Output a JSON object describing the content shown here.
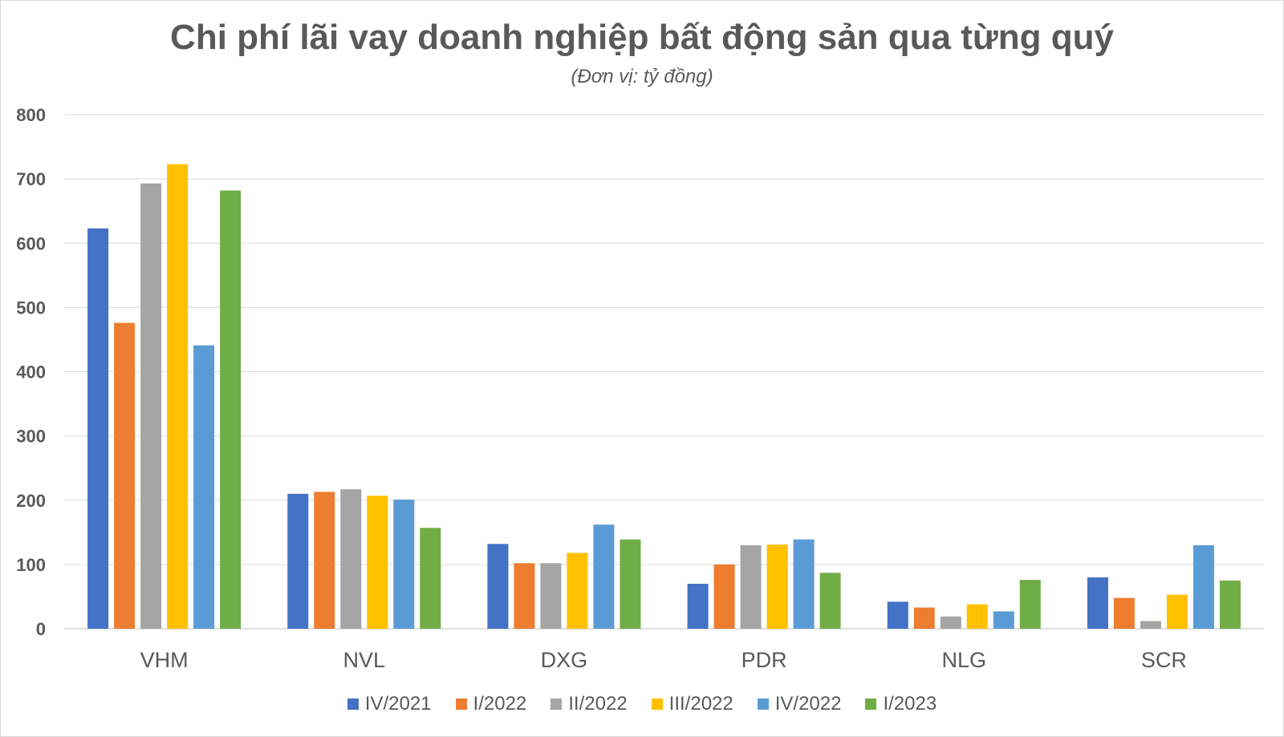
{
  "chart_data": {
    "type": "bar",
    "title": "Chi phí lãi vay doanh nghiệp bất động sản qua từng quý",
    "subtitle": "(Đơn vị: tỷ đồng)",
    "categories": [
      "VHM",
      "NVL",
      "DXG",
      "PDR",
      "NLG",
      "SCR"
    ],
    "series": [
      {
        "name": "IV/2021",
        "color": "#4472C4",
        "values": [
          623,
          210,
          132,
          70,
          42,
          80
        ]
      },
      {
        "name": "I/2022",
        "color": "#ED7D31",
        "values": [
          476,
          213,
          102,
          100,
          33,
          48
        ]
      },
      {
        "name": "II/2022",
        "color": "#A5A5A5",
        "values": [
          693,
          217,
          102,
          130,
          19,
          12
        ]
      },
      {
        "name": "III/2022",
        "color": "#FFC000",
        "values": [
          723,
          207,
          118,
          131,
          38,
          53
        ]
      },
      {
        "name": "IV/2022",
        "color": "#5B9BD5",
        "values": [
          441,
          201,
          162,
          139,
          27,
          130
        ]
      },
      {
        "name": "I/2023",
        "color": "#70AD47",
        "values": [
          682,
          157,
          139,
          87,
          76,
          75
        ]
      }
    ],
    "y_ticks": [
      "0",
      "100",
      "200",
      "300",
      "400",
      "500",
      "600",
      "700",
      "800"
    ],
    "ylim": [
      0,
      800
    ],
    "grid": true,
    "legend_position": "bottom"
  }
}
